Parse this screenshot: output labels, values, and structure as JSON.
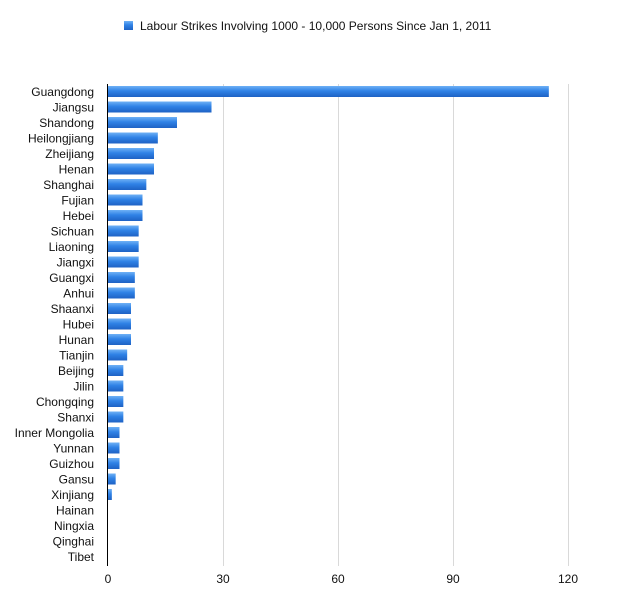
{
  "chart_data": {
    "type": "bar",
    "orientation": "horizontal",
    "legend_label": "Labour Strikes Involving 1000 - 10,000 Persons Since Jan 1, 2011",
    "legend_placement": "top-center",
    "categories": [
      "Guangdong",
      "Jiangsu",
      "Shandong",
      "Heilongjiang",
      "Zheijiang",
      "Henan",
      "Shanghai",
      "Fujian",
      "Hebei",
      "Sichuan",
      "Liaoning",
      "Jiangxi",
      "Guangxi",
      "Anhui",
      "Shaanxi",
      "Hubei",
      "Hunan",
      "Tianjin",
      "Beijing",
      "Jilin",
      "Chongqing",
      "Shanxi",
      "Inner Mongolia",
      "Yunnan",
      "Guizhou",
      "Gansu",
      "Xinjiang",
      "Hainan",
      "Ningxia",
      "Qinghai",
      "Tibet"
    ],
    "values": [
      115,
      27,
      18,
      13,
      12,
      12,
      10,
      9,
      9,
      8,
      8,
      8,
      7,
      7,
      6,
      6,
      6,
      5,
      4,
      4,
      4,
      4,
      3,
      3,
      3,
      2,
      1,
      0,
      0,
      0,
      0
    ],
    "x_ticks": [
      0,
      30,
      60,
      90,
      120
    ],
    "xlim": [
      0,
      120
    ],
    "grid": "vertical",
    "bar_color": "#2f7fe3"
  }
}
